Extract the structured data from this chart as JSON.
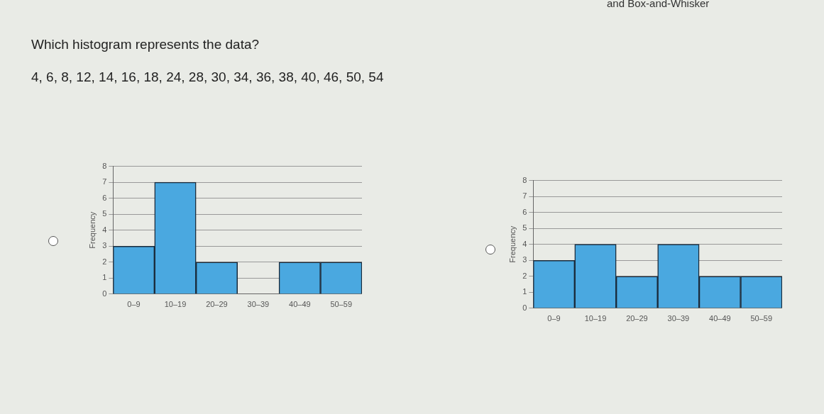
{
  "chart_data": [
    {
      "type": "other",
      "title": "Which histogram represents the data?",
      "subtitle": "4, 6, 8, 12, 14, 16, 18, 24, 28, 30, 34, 36, 38, 40, 46, 50, 54",
      "annotations": [
        "and Box-and-Whisker"
      ]
    },
    {
      "type": "bar",
      "ylabel": "Frequency",
      "categories": [
        "0–9",
        "10–19",
        "20–29",
        "30–39",
        "40–49",
        "50–59"
      ],
      "values": [
        3,
        7,
        2,
        0,
        2,
        2
      ],
      "color": "#4aa8e0",
      "ylim": [
        0,
        8
      ],
      "yticks": [
        0,
        1,
        2,
        3,
        4,
        5,
        6,
        7,
        8
      ],
      "grid": "y",
      "legend": false
    },
    {
      "type": "bar",
      "ylabel": "Frequency",
      "categories": [
        "0–9",
        "10–19",
        "20–29",
        "30–39",
        "40–49",
        "50–59"
      ],
      "values": [
        3,
        4,
        2,
        4,
        2,
        2
      ],
      "color": "#4aa8e0",
      "ylim": [
        0,
        8
      ],
      "yticks": [
        0,
        1,
        2,
        3,
        4,
        5,
        6,
        7,
        8
      ],
      "grid": "y",
      "legend": false
    }
  ]
}
